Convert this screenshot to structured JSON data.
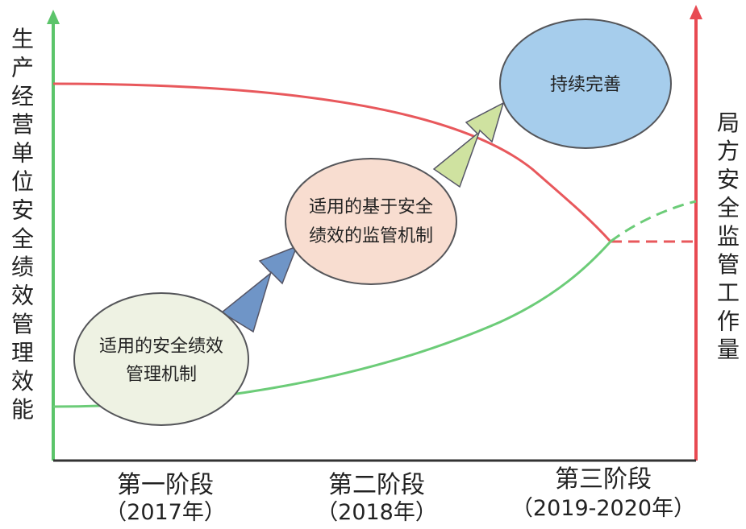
{
  "left_axis_label": [
    "生",
    "产",
    "经",
    "营",
    "单",
    "位",
    "安",
    "全",
    "绩",
    "效",
    "管",
    "理",
    "效",
    "能"
  ],
  "right_axis_label": [
    "局",
    "方",
    "安",
    "全",
    "监",
    "管",
    "工",
    "作",
    "量"
  ],
  "stages": [
    {
      "name": "第一阶段",
      "years": "（2017年）"
    },
    {
      "name": "第二阶段",
      "years": "（2018年）"
    },
    {
      "name": "第三阶段",
      "years": "（2019-2020年）"
    }
  ],
  "bubbles": [
    {
      "lines": [
        "适用的安全绩效",
        "管理机制"
      ],
      "fill": "#eef2e3",
      "stroke": "#55565a"
    },
    {
      "lines": [
        "适用的基于安全",
        "绩效的监管机制"
      ],
      "fill": "#f8ddd0",
      "stroke": "#55565a"
    },
    {
      "lines": [
        "持续完善"
      ],
      "fill": "#a6cdec",
      "stroke": "#55565a"
    }
  ],
  "arrows": [
    {
      "name": "arrow-stage1-to-stage2",
      "fill": "#6f95c7"
    },
    {
      "name": "arrow-stage2-to-stage3",
      "fill": "#cfe2a0"
    }
  ],
  "colors": {
    "green_curve": "#6ccc78",
    "red_curve": "#e8585c",
    "left_axis": "#5bc46a",
    "right_axis": "#e84a52",
    "baseline": "#333333"
  }
}
